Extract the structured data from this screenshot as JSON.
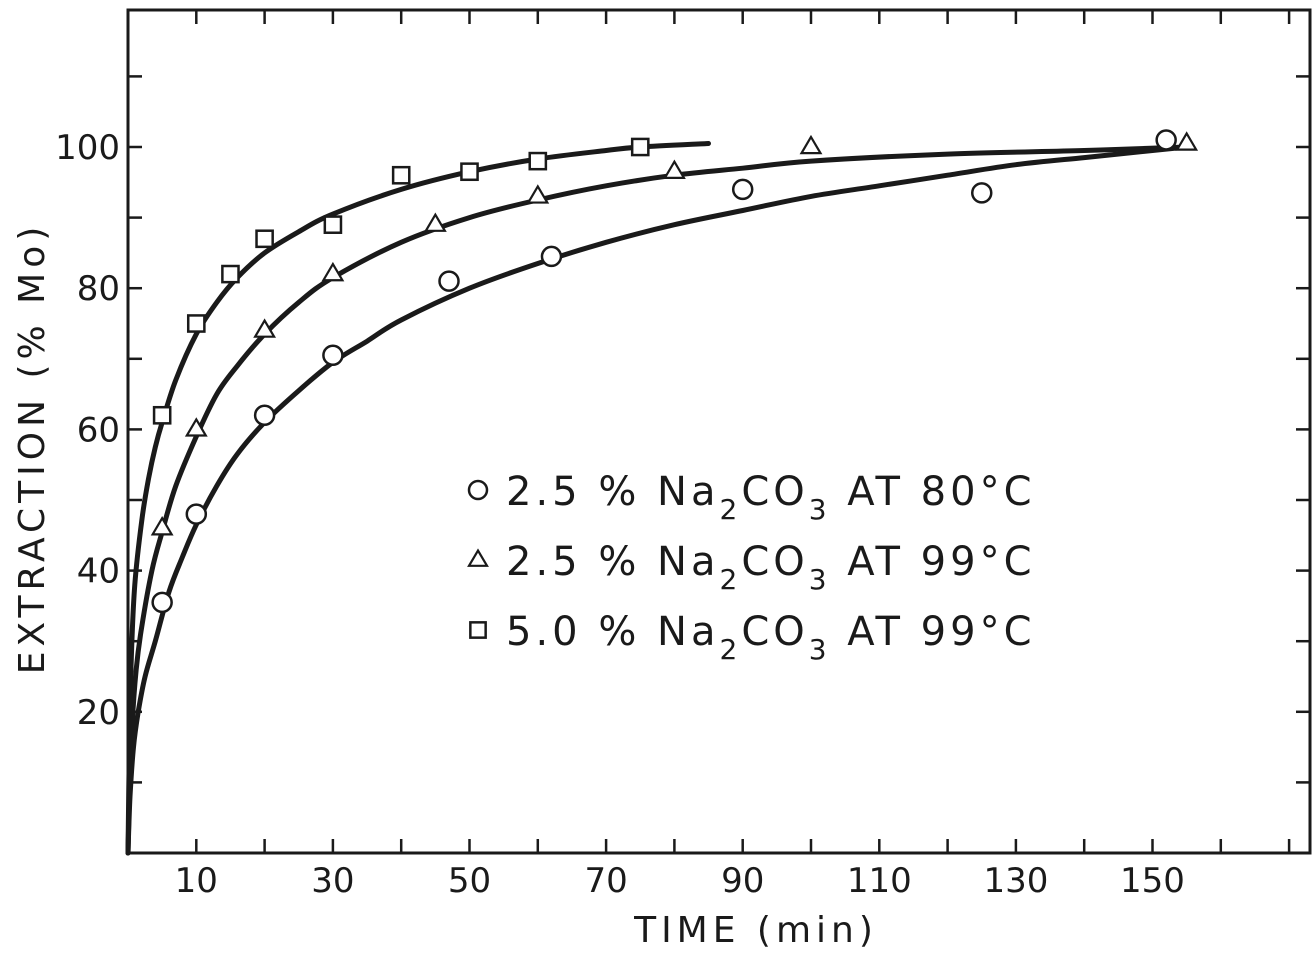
{
  "chart_data": {
    "type": "scatter",
    "title": "",
    "xlabel": "TIME (min)",
    "ylabel": "EXTRACTION (% Mo)",
    "xlim": [
      0,
      170
    ],
    "ylim": [
      0,
      100
    ],
    "x_ticks": [
      10,
      30,
      50,
      70,
      90,
      110,
      130,
      150
    ],
    "x_minor_ticks": [
      0,
      10,
      20,
      30,
      40,
      50,
      60,
      70,
      80,
      90,
      100,
      110,
      120,
      130,
      140,
      150,
      160,
      170
    ],
    "y_ticks": [
      20,
      40,
      60,
      80,
      100
    ],
    "y_minor_ticks": [
      10,
      20,
      30,
      40,
      50,
      60,
      70,
      80,
      90,
      100,
      110,
      120
    ],
    "grid": false,
    "legend_position": "center-right",
    "series": [
      {
        "name": "2.5 % Na2CO3 AT 80°C",
        "legend_parts": [
          "2.5 % Na",
          "2",
          "CO",
          "3",
          " AT 80°C"
        ],
        "marker": "circle",
        "points": [
          [
            5,
            35.5
          ],
          [
            10,
            48
          ],
          [
            20,
            62
          ],
          [
            30,
            70.5
          ],
          [
            47,
            81
          ],
          [
            62,
            84.5
          ],
          [
            90,
            94
          ],
          [
            125,
            93.5
          ],
          [
            152,
            101
          ]
        ],
        "curve": [
          [
            0,
            0
          ],
          [
            0.3,
            8
          ],
          [
            0.8,
            15
          ],
          [
            1.5,
            20
          ],
          [
            2.5,
            25
          ],
          [
            4,
            30
          ],
          [
            6,
            37
          ],
          [
            8,
            42
          ],
          [
            10,
            46.5
          ],
          [
            13,
            52
          ],
          [
            16,
            56.5
          ],
          [
            20,
            61
          ],
          [
            25,
            65.5
          ],
          [
            30,
            69.5
          ],
          [
            35,
            72.5
          ],
          [
            40,
            75.5
          ],
          [
            50,
            80
          ],
          [
            60,
            83.5
          ],
          [
            70,
            86.5
          ],
          [
            80,
            89
          ],
          [
            90,
            91
          ],
          [
            100,
            93
          ],
          [
            110,
            94.5
          ],
          [
            120,
            96
          ],
          [
            130,
            97.5
          ],
          [
            140,
            98.5
          ],
          [
            150,
            99.5
          ],
          [
            155,
            100
          ]
        ]
      },
      {
        "name": "2.5 % Na2CO3 AT 99°C",
        "legend_parts": [
          "2.5 % Na",
          "2",
          "CO",
          "3",
          " AT 99°C"
        ],
        "marker": "triangle",
        "points": [
          [
            5,
            46
          ],
          [
            10,
            60
          ],
          [
            20,
            74
          ],
          [
            30,
            82
          ],
          [
            45,
            89
          ],
          [
            60,
            93
          ],
          [
            80,
            96.5
          ],
          [
            100,
            100
          ],
          [
            155,
            100.5
          ]
        ],
        "curve": [
          [
            0,
            0
          ],
          [
            0.2,
            8
          ],
          [
            0.6,
            18
          ],
          [
            1.2,
            26
          ],
          [
            2,
            32
          ],
          [
            3.5,
            40
          ],
          [
            5,
            45.5
          ],
          [
            7,
            52
          ],
          [
            10,
            59
          ],
          [
            13,
            65
          ],
          [
            16,
            69
          ],
          [
            20,
            73.5
          ],
          [
            25,
            78
          ],
          [
            30,
            81.5
          ],
          [
            40,
            86.5
          ],
          [
            50,
            90
          ],
          [
            60,
            92.5
          ],
          [
            70,
            94.5
          ],
          [
            80,
            96
          ],
          [
            90,
            97
          ],
          [
            100,
            98
          ],
          [
            120,
            99
          ],
          [
            140,
            99.5
          ],
          [
            155,
            100
          ]
        ]
      },
      {
        "name": "5.0 % Na2CO3 AT 99°C",
        "legend_parts": [
          "5.0 % Na",
          "2",
          "CO",
          "3",
          " AT 99°C"
        ],
        "marker": "square",
        "points": [
          [
            5,
            62
          ],
          [
            10,
            75
          ],
          [
            15,
            82
          ],
          [
            20,
            87
          ],
          [
            30,
            89
          ],
          [
            40,
            96
          ],
          [
            50,
            96.5
          ],
          [
            60,
            98
          ],
          [
            75,
            100
          ]
        ],
        "curve": [
          [
            0,
            0
          ],
          [
            0.2,
            15
          ],
          [
            0.5,
            28
          ],
          [
            1,
            38
          ],
          [
            2,
            47
          ],
          [
            3,
            53
          ],
          [
            4,
            57.5
          ],
          [
            5,
            61
          ],
          [
            7,
            67
          ],
          [
            10,
            73.5
          ],
          [
            13,
            78
          ],
          [
            16,
            81.5
          ],
          [
            20,
            85
          ],
          [
            25,
            88
          ],
          [
            30,
            90.5
          ],
          [
            40,
            94
          ],
          [
            50,
            96.5
          ],
          [
            60,
            98.3
          ],
          [
            70,
            99.5
          ],
          [
            75,
            100
          ],
          [
            85,
            100.5
          ]
        ]
      }
    ]
  }
}
